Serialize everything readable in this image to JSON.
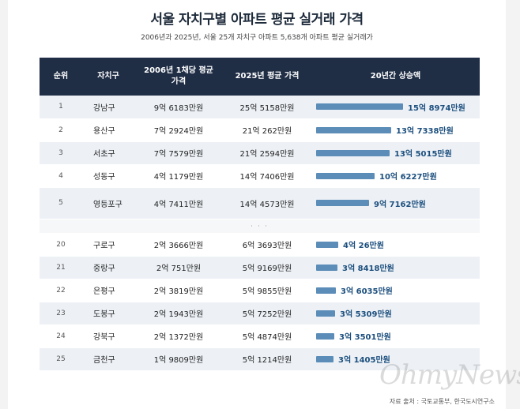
{
  "title": "서울 자치구별 아파트 평균 실거래 가격",
  "subtitle": "2006년과 2025년, 서울 25개 자치구 아파트 5,638개 아파트 평균 실거래가",
  "headers": {
    "rank": "순위",
    "district": "자치구",
    "price2006": "2006년 1채당 평균 가격",
    "price2025": "2025년 평균 가격",
    "increase": "20년간 상승액"
  },
  "separator": "· · ·",
  "source": "자료 출처 : 국토교통부, 한국도시연구소",
  "watermark": "OhmyNews",
  "colors": {
    "header_bg": "#1f2d45",
    "bar": "#5b8db8",
    "bar_label": "#1c4f7e"
  },
  "chart_data": {
    "type": "table",
    "value_unit": "만원",
    "rows": [
      {
        "rank": "1",
        "district": "강남구",
        "price2006": "9억 6183만원",
        "price2025": "25억 5158만원",
        "increase": "15억 8974만원",
        "increase_value": 158974
      },
      {
        "rank": "2",
        "district": "용산구",
        "price2006": "7억 2924만원",
        "price2025": "21억 262만원",
        "increase": "13억 7338만원",
        "increase_value": 137338
      },
      {
        "rank": "3",
        "district": "서초구",
        "price2006": "7억 7579만원",
        "price2025": "21억 2594만원",
        "increase": "13억 5015만원",
        "increase_value": 135015
      },
      {
        "rank": "4",
        "district": "성동구",
        "price2006": "4억 1179만원",
        "price2025": "14억 7406만원",
        "increase": "10억 6227만원",
        "increase_value": 106227
      },
      {
        "rank": "5",
        "district": "영등포구",
        "price2006": "4억 7411만원",
        "price2025": "14억 4573만원",
        "increase": "9억 7162만원",
        "increase_value": 97162
      },
      {
        "separator": true
      },
      {
        "rank": "20",
        "district": "구로구",
        "price2006": "2억 3666만원",
        "price2025": "6억 3693만원",
        "increase": "4억 26만원",
        "increase_value": 40026
      },
      {
        "rank": "21",
        "district": "중랑구",
        "price2006": "2억 751만원",
        "price2025": "5억 9169만원",
        "increase": "3억 8418만원",
        "increase_value": 38418
      },
      {
        "rank": "22",
        "district": "은평구",
        "price2006": "2억 3819만원",
        "price2025": "5억 9855만원",
        "increase": "3억 6035만원",
        "increase_value": 36035
      },
      {
        "rank": "23",
        "district": "도봉구",
        "price2006": "2억 1943만원",
        "price2025": "5억 7252만원",
        "increase": "3억 5309만원",
        "increase_value": 35309
      },
      {
        "rank": "24",
        "district": "강북구",
        "price2006": "2억 1372만원",
        "price2025": "5억 4874만원",
        "increase": "3억 3501만원",
        "increase_value": 33501
      },
      {
        "rank": "25",
        "district": "금천구",
        "price2006": "1억 9809만원",
        "price2025": "5억 1214만원",
        "increase": "3억 1405만원",
        "increase_value": 31405
      }
    ]
  }
}
